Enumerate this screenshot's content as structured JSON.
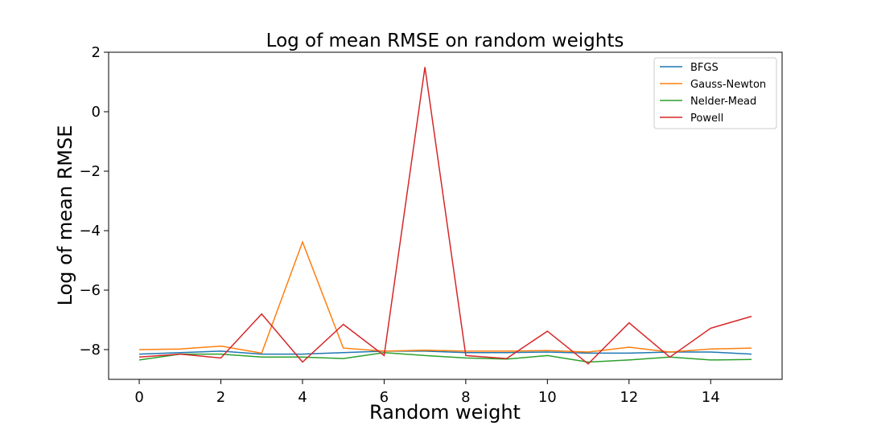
{
  "chart_data": {
    "type": "line",
    "title": "Log of mean RMSE on random weights",
    "xlabel": "Random weight",
    "ylabel": "Log of mean RMSE",
    "x": [
      0,
      1,
      2,
      3,
      4,
      5,
      6,
      7,
      8,
      9,
      10,
      11,
      12,
      13,
      14,
      15
    ],
    "xlim": [
      -0.75,
      15.75
    ],
    "ylim": [
      -9,
      2
    ],
    "xticks": [
      0,
      2,
      4,
      6,
      8,
      10,
      12,
      14
    ],
    "yticks": [
      -8,
      -6,
      -4,
      -2,
      0,
      2
    ],
    "ytick_labels": [
      "−8",
      "−6",
      "−4",
      "−2",
      "0",
      "2"
    ],
    "grid": false,
    "legend_position": "top-right",
    "series": [
      {
        "name": "BFGS",
        "color": "#1f77b4",
        "values": [
          -8.15,
          -8.1,
          -8.05,
          -8.15,
          -8.15,
          -8.1,
          -8.05,
          -8.05,
          -8.1,
          -8.1,
          -8.08,
          -8.12,
          -8.12,
          -8.08,
          -8.08,
          -8.15
        ]
      },
      {
        "name": "Gauss-Newton",
        "color": "#ff7f0e",
        "values": [
          -8.0,
          -7.98,
          -7.88,
          -8.12,
          -4.38,
          -7.95,
          -8.05,
          -8.02,
          -8.05,
          -8.05,
          -8.03,
          -8.08,
          -7.92,
          -8.08,
          -7.98,
          -7.95
        ]
      },
      {
        "name": "Nelder-Mead",
        "color": "#2ca02c",
        "values": [
          -8.35,
          -8.15,
          -8.15,
          -8.25,
          -8.25,
          -8.3,
          -8.1,
          -8.2,
          -8.28,
          -8.32,
          -8.2,
          -8.42,
          -8.35,
          -8.25,
          -8.35,
          -8.33
        ]
      },
      {
        "name": "Powell",
        "color": "#d62728",
        "values": [
          -8.25,
          -8.15,
          -8.28,
          -6.8,
          -8.42,
          -7.15,
          -8.2,
          1.5,
          -8.2,
          -8.3,
          -7.38,
          -8.48,
          -7.1,
          -8.25,
          -7.28,
          -6.88
        ]
      }
    ]
  }
}
